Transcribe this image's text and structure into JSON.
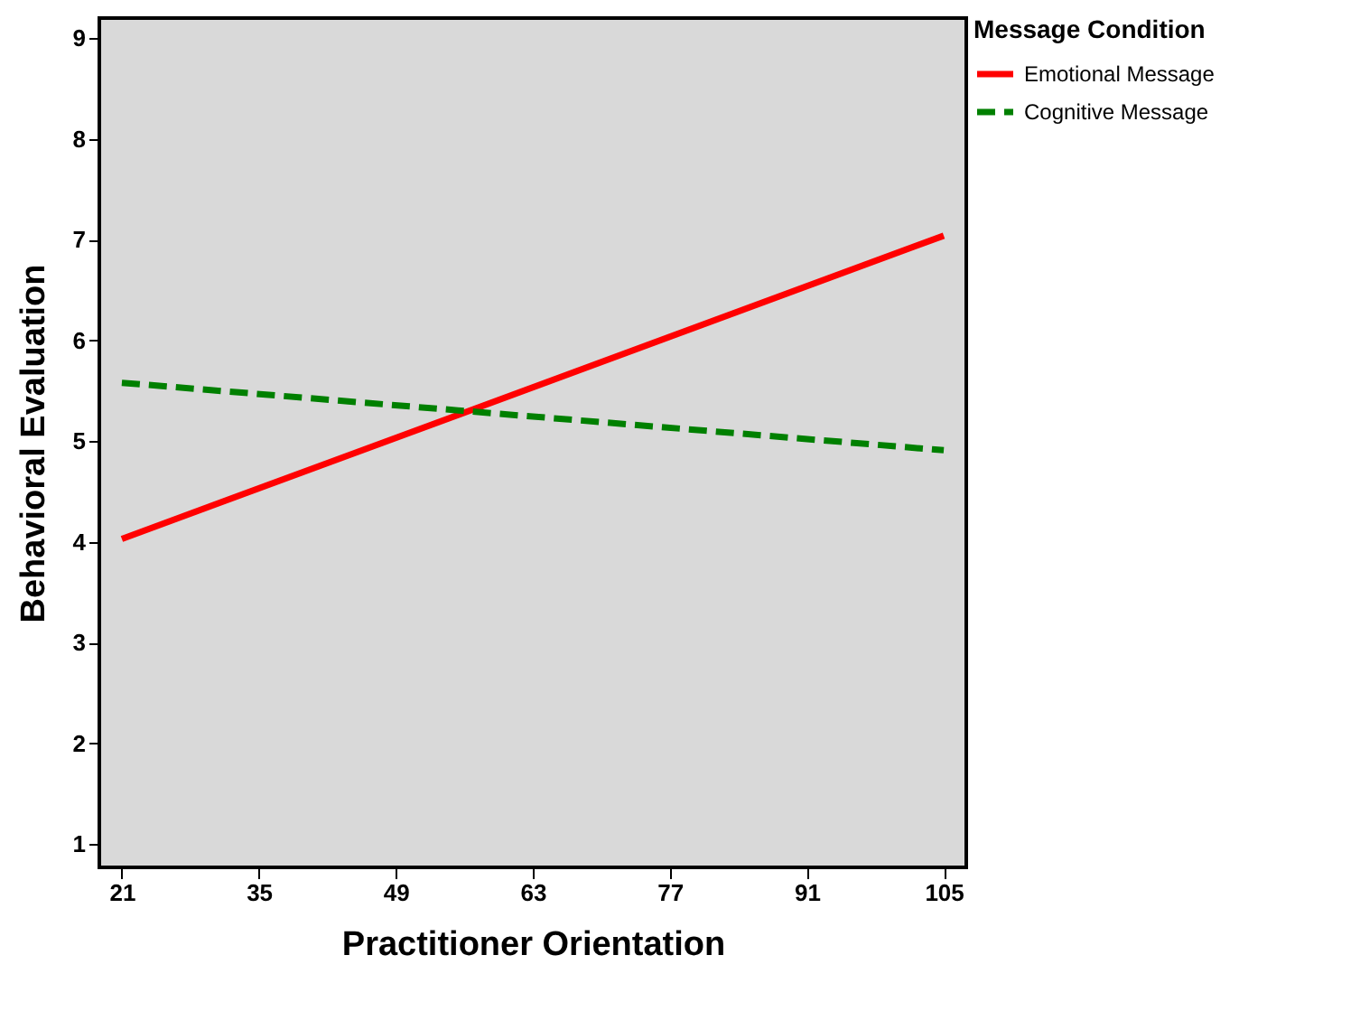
{
  "chart_data": {
    "type": "line",
    "xlabel": "Practitioner Orientation",
    "ylabel": "Behavioral Evaluation",
    "legend_title": "Message Condition",
    "x": [
      21,
      105
    ],
    "series": [
      {
        "name": "Emotional Message",
        "color": "#ff0000",
        "values": [
          4.03,
          7.04
        ],
        "line_style": "solid"
      },
      {
        "name": "Cognitive Message",
        "color": "#008000",
        "values": [
          5.58,
          4.91
        ],
        "line_style": "dashed"
      }
    ],
    "xlim": [
      18.7,
      107.3
    ],
    "xticks": [
      21,
      35,
      49,
      63,
      77,
      91,
      105
    ],
    "ylim": [
      0.77,
      9.2
    ],
    "yticks": [
      1,
      2,
      3,
      4,
      5,
      6,
      7,
      8,
      9
    ],
    "grid": false,
    "legend": "top right",
    "marker": "none"
  }
}
